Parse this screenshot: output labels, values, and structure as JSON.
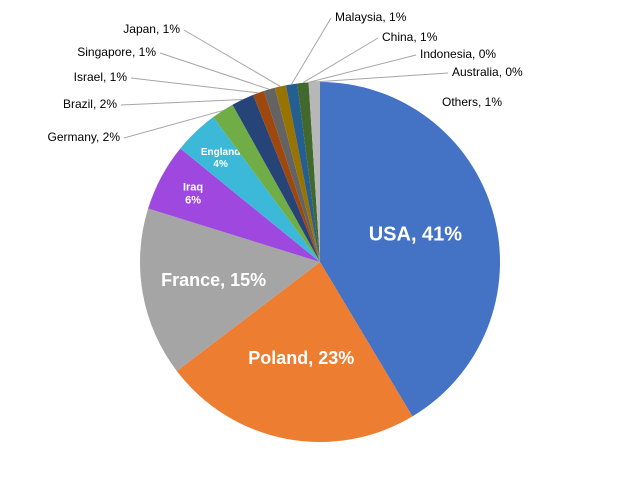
{
  "chart_data": {
    "type": "pie",
    "values": [
      41,
      23,
      15,
      6,
      4,
      2,
      2,
      1,
      1,
      1,
      1,
      1,
      0,
      0,
      1
    ],
    "value_labels": [
      "USA, 41%",
      "Poland, 23%",
      "France, 15%",
      "Iraq\n6%",
      "England\n4%",
      "Germany, 2%",
      "Brazil, 2%",
      "Israel, 1%",
      "Singapore, 1%",
      "Japan, 1%",
      "Malaysia, 1%",
      "China, 1%",
      "Indonesia, 0%",
      "Australia, 0%",
      "Others, 1%"
    ],
    "colors": [
      "#4472c4",
      "#ed7d31",
      "#a5a5a5",
      "#9e48e0",
      "#3cb8d8",
      "#70ad47",
      "#264478",
      "#9e480e",
      "#636363",
      "#997300",
      "#255e91",
      "#43682b",
      "#698ed0",
      "#f1975a",
      "#b7b7b7"
    ]
  }
}
